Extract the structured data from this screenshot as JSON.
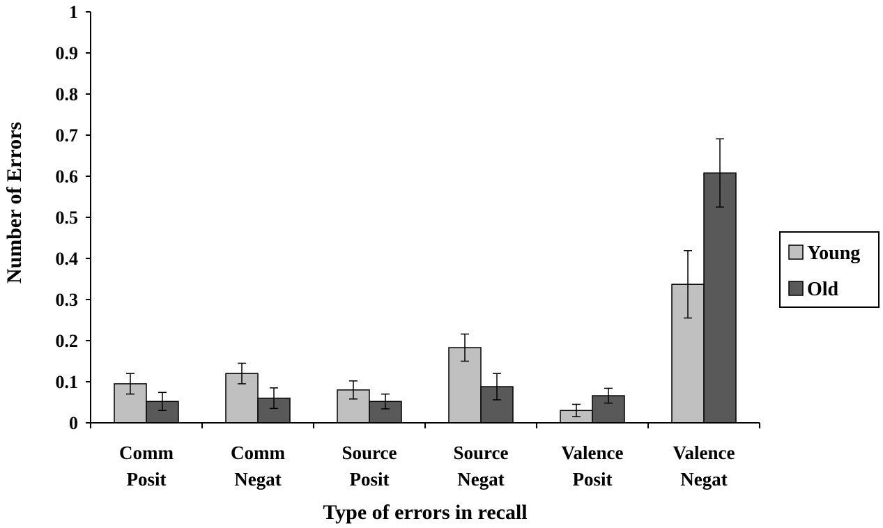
{
  "chart_data": {
    "type": "bar",
    "title": "",
    "xlabel": "Type of errors in recall",
    "ylabel": "Number of Errors",
    "ylim": [
      0,
      1
    ],
    "yticks": [
      "0",
      "0.1",
      "0.2",
      "0.3",
      "0.4",
      "0.5",
      "0.6",
      "0.7",
      "0.8",
      "0.9",
      "1"
    ],
    "categories": [
      [
        "Comm",
        "Posit"
      ],
      [
        "Comm",
        "Negat"
      ],
      [
        "Source",
        "Posit"
      ],
      [
        "Source",
        "Negat"
      ],
      [
        "Valence",
        "Posit"
      ],
      [
        "Valence",
        "Negat"
      ]
    ],
    "series": [
      {
        "name": "Young",
        "color": "#c0c0c0",
        "values": [
          0.095,
          0.12,
          0.08,
          0.183,
          0.03,
          0.337
        ],
        "errors": [
          0.025,
          0.025,
          0.022,
          0.033,
          0.015,
          0.082
        ]
      },
      {
        "name": "Old",
        "color": "#595959",
        "values": [
          0.052,
          0.06,
          0.052,
          0.088,
          0.066,
          0.608
        ],
        "errors": [
          0.022,
          0.025,
          0.018,
          0.032,
          0.018,
          0.083
        ]
      }
    ],
    "grid": false,
    "legend_position": "right"
  }
}
